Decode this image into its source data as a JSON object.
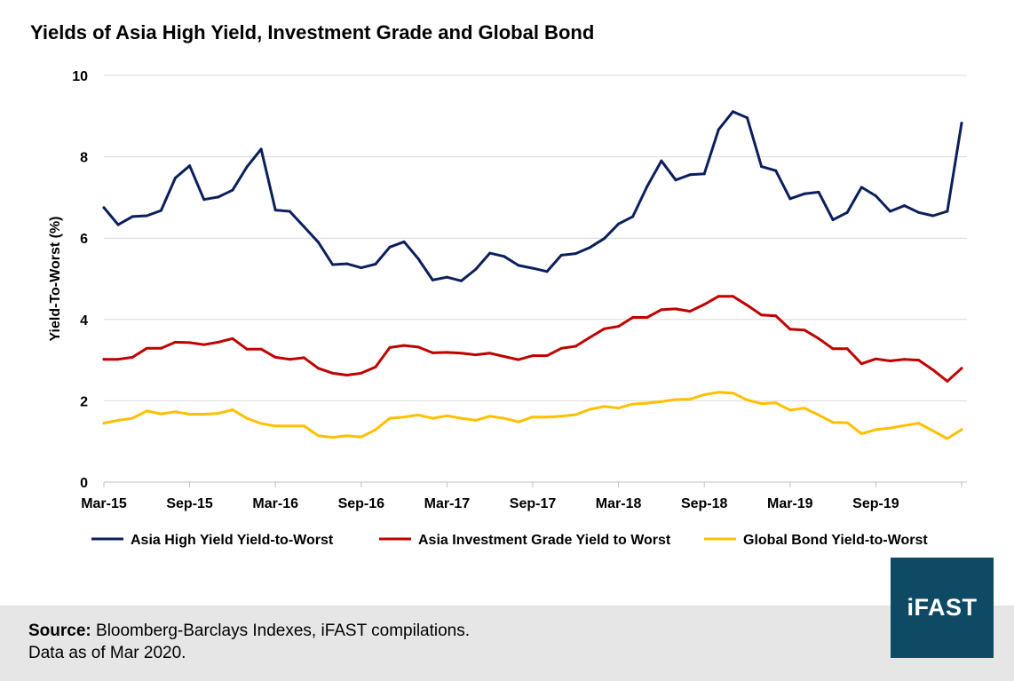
{
  "title": "Yields of Asia High Yield, Investment Grade and Global Bond",
  "source_label": "Source:",
  "source_text": "Bloomberg-Barclays Indexes, iFAST compilations.",
  "data_note": "Data as of Mar 2020.",
  "logo_text": "iFAST",
  "colors": {
    "high_yield": "#0b1f5c",
    "investment_grade": "#c00000",
    "global_bond": "#ffc000",
    "logo_bg": "#0f4a64",
    "axis": "#bfbfbf"
  },
  "chart_data": {
    "type": "line",
    "title": "Yields of Asia High Yield, Investment Grade and Global Bond",
    "xlabel": "",
    "ylabel": "Yield-To-Worst (%)",
    "ylim": [
      0,
      10
    ],
    "yticks": [
      0,
      2,
      4,
      6,
      8,
      10
    ],
    "grid": true,
    "legend": "bottom",
    "x_start": "Mar-15",
    "x_end": "Mar-20",
    "frequency": "monthly",
    "x_tick_labels": [
      "Mar-15",
      "Sep-15",
      "Mar-16",
      "Sep-16",
      "Mar-17",
      "Sep-17",
      "Mar-18",
      "Sep-18",
      "Mar-19",
      "Sep-19"
    ],
    "series": [
      {
        "name": "Asia High Yield Yield-to-Worst",
        "color": "#0b1f5c",
        "values": [
          6.75,
          6.33,
          6.53,
          6.55,
          6.68,
          7.48,
          7.78,
          6.95,
          7.01,
          7.18,
          7.75,
          8.19,
          6.69,
          6.66,
          6.28,
          5.9,
          5.35,
          5.37,
          5.27,
          5.36,
          5.78,
          5.91,
          5.49,
          4.97,
          5.04,
          4.95,
          5.23,
          5.63,
          5.55,
          5.33,
          5.26,
          5.18,
          5.58,
          5.62,
          5.77,
          5.99,
          6.35,
          6.53,
          7.27,
          7.9,
          7.43,
          7.56,
          7.58,
          8.67,
          9.11,
          8.96,
          7.76,
          7.66,
          6.97,
          7.09,
          7.13,
          6.45,
          6.63,
          7.25,
          7.04,
          6.66,
          6.8,
          6.63,
          6.55,
          6.66,
          8.83
        ]
      },
      {
        "name": "Asia Investment Grade Yield to Worst",
        "color": "#c00000",
        "values": [
          3.02,
          3.02,
          3.07,
          3.29,
          3.29,
          3.44,
          3.43,
          3.38,
          3.44,
          3.53,
          3.27,
          3.27,
          3.07,
          3.02,
          3.06,
          2.8,
          2.68,
          2.63,
          2.68,
          2.83,
          3.31,
          3.36,
          3.32,
          3.18,
          3.19,
          3.17,
          3.13,
          3.17,
          3.09,
          3.01,
          3.11,
          3.11,
          3.29,
          3.34,
          3.56,
          3.77,
          3.83,
          4.05,
          4.05,
          4.24,
          4.26,
          4.2,
          4.37,
          4.57,
          4.57,
          4.35,
          4.11,
          4.09,
          3.76,
          3.74,
          3.53,
          3.28,
          3.28,
          2.91,
          3.03,
          2.98,
          3.02,
          3.0,
          2.76,
          2.48,
          2.8
        ]
      },
      {
        "name": "Global Bond Yield-to-Worst",
        "color": "#ffc000",
        "values": [
          1.45,
          1.52,
          1.57,
          1.75,
          1.68,
          1.73,
          1.67,
          1.67,
          1.69,
          1.78,
          1.57,
          1.44,
          1.38,
          1.38,
          1.38,
          1.14,
          1.1,
          1.14,
          1.11,
          1.29,
          1.57,
          1.6,
          1.65,
          1.57,
          1.63,
          1.57,
          1.52,
          1.62,
          1.57,
          1.48,
          1.6,
          1.6,
          1.62,
          1.66,
          1.79,
          1.86,
          1.82,
          1.92,
          1.94,
          1.98,
          2.03,
          2.04,
          2.15,
          2.21,
          2.19,
          2.02,
          1.93,
          1.95,
          1.77,
          1.82,
          1.65,
          1.47,
          1.46,
          1.19,
          1.29,
          1.33,
          1.39,
          1.45,
          1.26,
          1.07,
          1.29
        ]
      }
    ]
  }
}
